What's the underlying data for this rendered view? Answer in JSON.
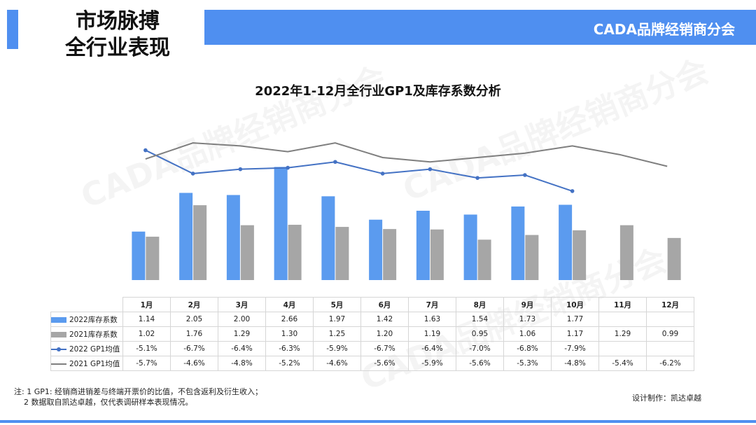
{
  "header": {
    "title_line1": "市场脉搏",
    "title_line2": "全行业表现",
    "org_name": "CADA品牌经销商分会"
  },
  "watermark_text": "CADA品牌经销商分会",
  "colors": {
    "accent": "#4f8ff0",
    "bar_2022": "#5b9bef",
    "bar_2021": "#a6a6a6",
    "line_2022": "#4472c4",
    "line_2021": "#7f7f7f"
  },
  "chart_data": {
    "type": "bar",
    "title": "2022年1-12月全行业GP1及库存系数分析",
    "categories": [
      "1月",
      "2月",
      "3月",
      "4月",
      "5月",
      "6月",
      "7月",
      "8月",
      "9月",
      "10月",
      "11月",
      "12月"
    ],
    "bar_ylim": [
      0,
      2.7
    ],
    "line_ylim": [
      -14,
      -2
    ],
    "series": [
      {
        "name": "2022库存系数",
        "kind": "bar",
        "values": [
          1.14,
          2.05,
          2.0,
          2.66,
          1.97,
          1.42,
          1.63,
          1.54,
          1.73,
          1.77,
          null,
          null
        ],
        "labels": [
          "1.14",
          "2.05",
          "2.00",
          "2.66",
          "1.97",
          "1.42",
          "1.63",
          "1.54",
          "1.73",
          "1.77",
          "",
          ""
        ]
      },
      {
        "name": "2021库存系数",
        "kind": "bar",
        "values": [
          1.02,
          1.76,
          1.29,
          1.3,
          1.25,
          1.2,
          1.19,
          0.95,
          1.06,
          1.17,
          1.29,
          0.99
        ],
        "labels": [
          "1.02",
          "1.76",
          "1.29",
          "1.30",
          "1.25",
          "1.20",
          "1.19",
          "0.95",
          "1.06",
          "1.17",
          "1.29",
          "0.99"
        ]
      },
      {
        "name": "2022 GP1均值",
        "kind": "line",
        "values": [
          -5.1,
          -6.7,
          -6.4,
          -6.3,
          -5.9,
          -6.7,
          -6.4,
          -7.0,
          -6.8,
          -7.9,
          null,
          null
        ],
        "labels": [
          "-5.1%",
          "-6.7%",
          "-6.4%",
          "-6.3%",
          "-5.9%",
          "-6.7%",
          "-6.4%",
          "-7.0%",
          "-6.8%",
          "-7.9%",
          "",
          ""
        ]
      },
      {
        "name": "2021 GP1均值",
        "kind": "line",
        "values": [
          -5.7,
          -4.6,
          -4.8,
          -5.2,
          -4.6,
          -5.6,
          -5.9,
          -5.6,
          -5.3,
          -4.8,
          -5.4,
          -6.2
        ],
        "labels": [
          "-5.7%",
          "-4.6%",
          "-4.8%",
          "-5.2%",
          "-4.6%",
          "-5.6%",
          "-5.9%",
          "-5.6%",
          "-5.3%",
          "-4.8%",
          "-5.4%",
          "-6.2%"
        ]
      }
    ],
    "legend": "table-rows",
    "grid": false
  },
  "footnote": {
    "line1": "注: 1 GP1: 经销商进销差与终端开票价的比值，不包含返利及衍生收入；",
    "line2": "2 数据取自凯达卓越，仅代表调研样本表现情况。"
  },
  "credit": "设计制作：凯达卓越"
}
